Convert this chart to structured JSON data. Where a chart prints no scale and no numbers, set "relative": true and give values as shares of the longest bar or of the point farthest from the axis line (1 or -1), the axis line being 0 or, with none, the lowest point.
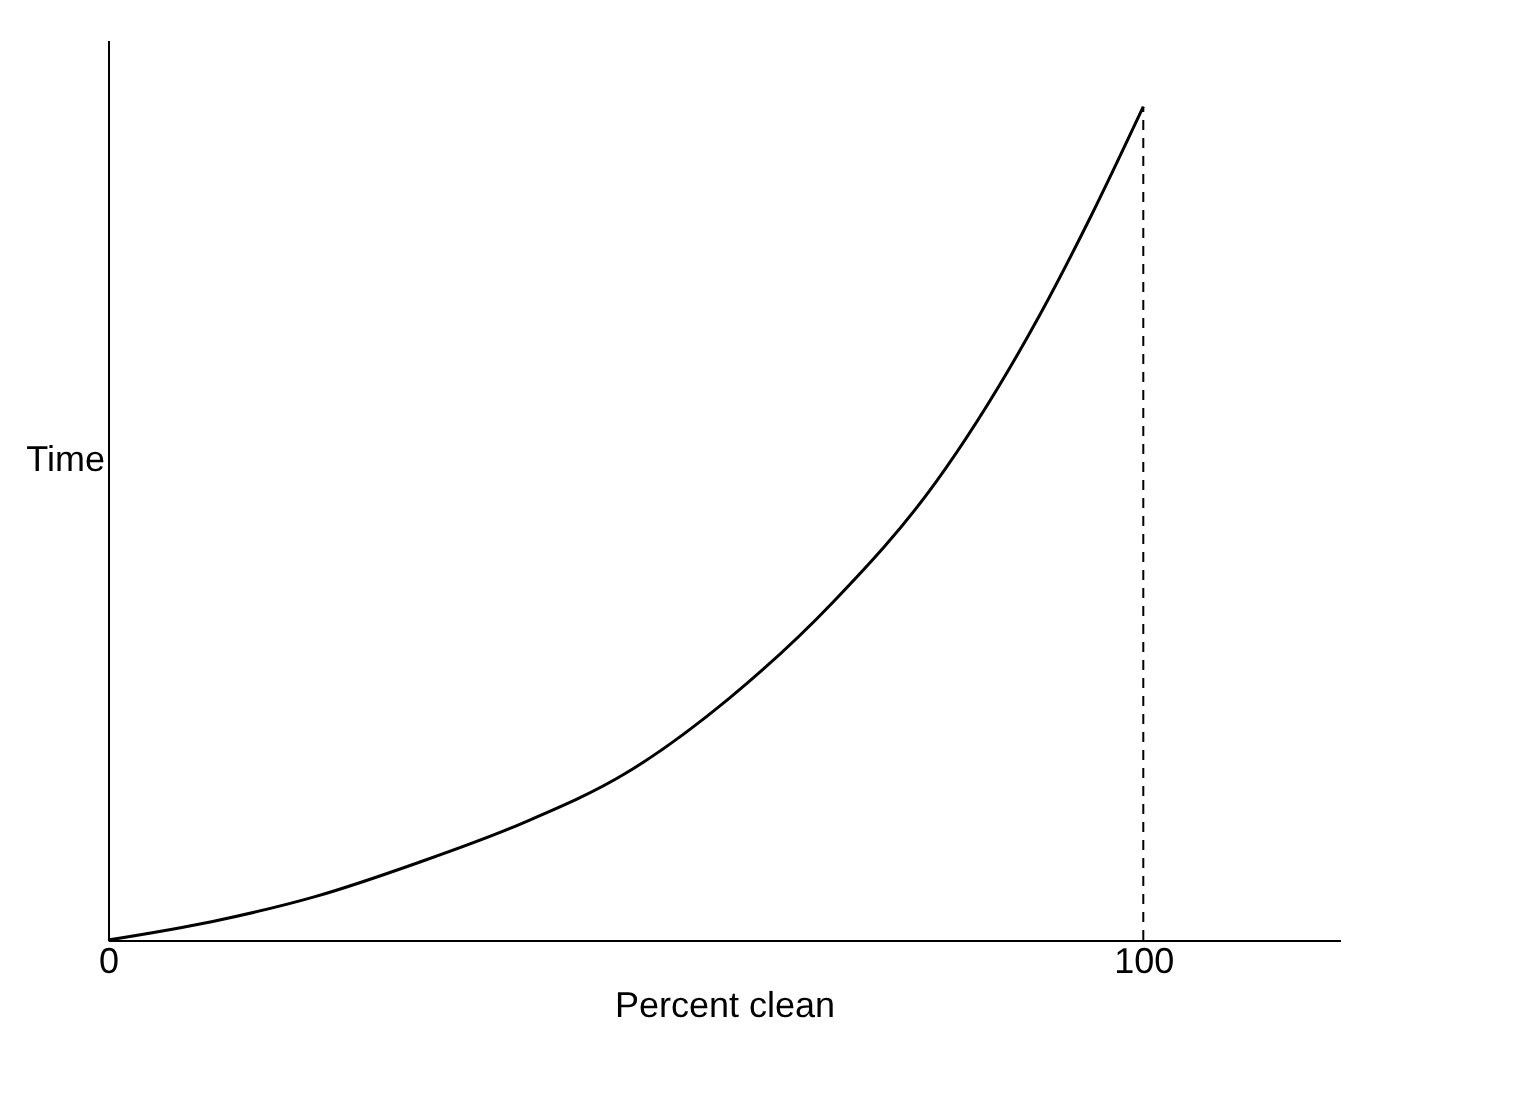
{
  "chart_data": {
    "type": "line",
    "relative": true,
    "xlabel": "Percent clean",
    "ylabel": "Time",
    "x": [
      0,
      10,
      20,
      30,
      40,
      50,
      60,
      70,
      80,
      90,
      95,
      100
    ],
    "series": [
      {
        "color": "#000000",
        "values": [
          0,
          0.022,
          0.052,
          0.093,
          0.14,
          0.2,
          0.29,
          0.405,
          0.55,
          0.75,
          0.87,
          1
        ]
      }
    ],
    "xlim": [
      0,
      119
    ],
    "xticks": [
      0,
      100
    ],
    "grid": false,
    "marker": "none",
    "line_style": "solid",
    "ref_lines": [
      {
        "axis": "x",
        "value": 100,
        "color": "#000000",
        "line_style": "dashed"
      }
    ]
  }
}
